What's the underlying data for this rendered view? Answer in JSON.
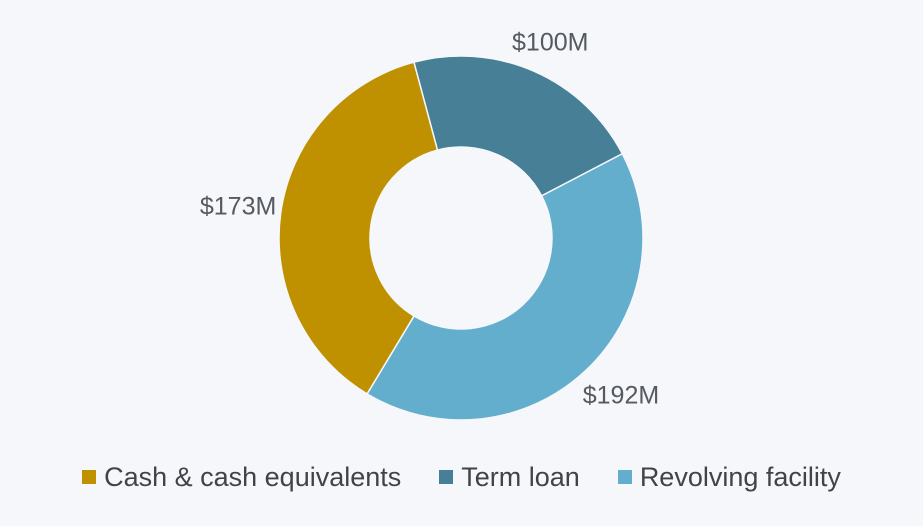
{
  "chart_data": {
    "type": "pie",
    "variant": "donut",
    "title": "",
    "slices": [
      {
        "name": "Term loan",
        "value": 100,
        "label": "$100M",
        "color": "#467f96"
      },
      {
        "name": "Revolving facility",
        "value": 192,
        "label": "$192M",
        "color": "#63aecd"
      },
      {
        "name": "Cash & cash equivalents",
        "value": 173,
        "label": "$173M",
        "color": "#bf9000"
      }
    ],
    "legend_order": [
      "Cash & cash equivalents",
      "Term loan",
      "Revolving facility"
    ],
    "legend_position": "bottom",
    "units": "$M"
  }
}
